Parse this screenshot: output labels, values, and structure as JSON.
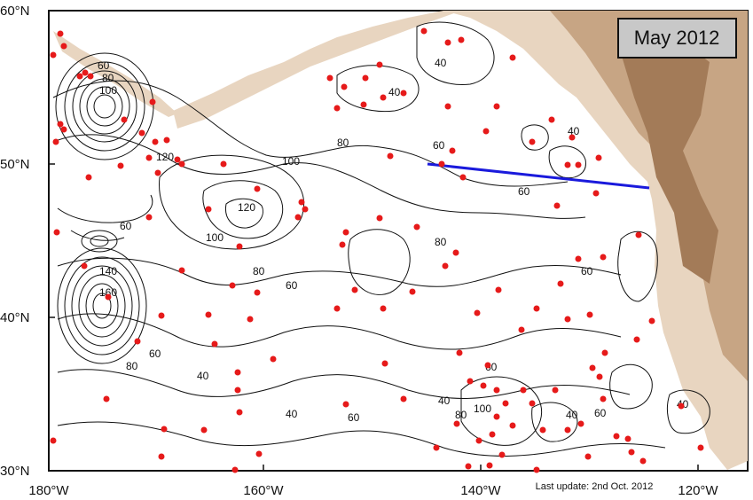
{
  "map": {
    "title_badge": "May 2012",
    "footer_note": "Last update: 2nd Oct. 2012",
    "lat_labels": [
      "60°N",
      "50°N",
      "40°N",
      "30°N"
    ],
    "lon_labels": [
      "180°W",
      "160°W",
      "140°W",
      "120°W"
    ],
    "contour_labels": [
      "60",
      "80",
      "100",
      "120",
      "140",
      "160",
      "80",
      "60",
      "40",
      "60",
      "80",
      "100",
      "120",
      "100",
      "80",
      "60",
      "40",
      "60",
      "80",
      "60",
      "40",
      "40",
      "60",
      "80",
      "100",
      "60",
      "40",
      "60",
      "40",
      "60",
      "40",
      "40"
    ],
    "colors": {
      "ocean": "#ffffff",
      "land_low": "#f2e6da",
      "land_mid": "#d9bfa3",
      "land_high": "#a9805c",
      "floats": "#e61a1a",
      "section_line": "#1a1adc",
      "badge_fill": "#c8c8c8"
    },
    "legend_items": [
      "Argo float positions (red dots)",
      "Line P section (blue)"
    ]
  }
}
